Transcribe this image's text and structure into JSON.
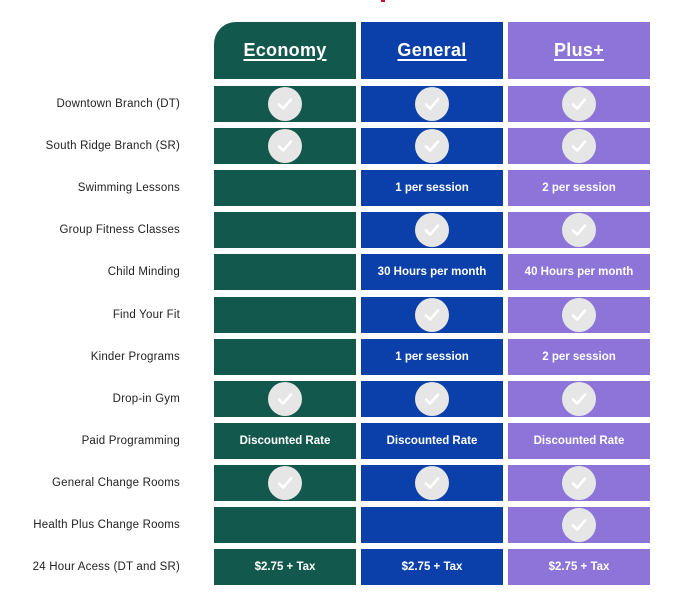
{
  "colors": {
    "economy": "#13584c",
    "general": "#0b40aa",
    "plus": "#8c74d8",
    "check_bg": "#e6e6e6",
    "check_mark": "#ffffff"
  },
  "plans": [
    {
      "key": "economy",
      "label": "Economy"
    },
    {
      "key": "general",
      "label": "General"
    },
    {
      "key": "plus",
      "label": "Plus+"
    }
  ],
  "rows": [
    {
      "label": "Downtown Branch (DT)",
      "cells": [
        {
          "check": true
        },
        {
          "check": true
        },
        {
          "check": true
        }
      ]
    },
    {
      "label": "South Ridge Branch (SR)",
      "cells": [
        {
          "check": true
        },
        {
          "check": true
        },
        {
          "check": true
        }
      ]
    },
    {
      "label": "Swimming Lessons",
      "cells": [
        {
          "text": ""
        },
        {
          "text": "1 per session"
        },
        {
          "text": "2 per session"
        }
      ]
    },
    {
      "label": "Group Fitness Classes",
      "cells": [
        {
          "text": ""
        },
        {
          "check": true
        },
        {
          "check": true
        }
      ]
    },
    {
      "label": "Child Minding",
      "cells": [
        {
          "text": ""
        },
        {
          "text": "30 Hours per month"
        },
        {
          "text": "40 Hours per month"
        }
      ]
    },
    {
      "label": "Find Your Fit",
      "cells": [
        {
          "text": ""
        },
        {
          "check": true
        },
        {
          "check": true
        }
      ]
    },
    {
      "label": "Kinder Programs",
      "cells": [
        {
          "text": ""
        },
        {
          "text": "1 per session"
        },
        {
          "text": "2 per session"
        }
      ]
    },
    {
      "label": "Drop-in Gym",
      "cells": [
        {
          "check": true
        },
        {
          "check": true
        },
        {
          "check": true
        }
      ]
    },
    {
      "label": "Paid Programming",
      "cells": [
        {
          "text": "Discounted Rate"
        },
        {
          "text": "Discounted Rate"
        },
        {
          "text": "Discounted Rate"
        }
      ]
    },
    {
      "label": "General Change Rooms",
      "cells": [
        {
          "check": true
        },
        {
          "check": true
        },
        {
          "check": true
        }
      ]
    },
    {
      "label": "Health Plus Change Rooms",
      "cells": [
        {
          "text": ""
        },
        {
          "text": ""
        },
        {
          "check": true
        }
      ]
    },
    {
      "label": "24 Hour Acess (DT and SR)",
      "cells": [
        {
          "text": "$2.75 + Tax"
        },
        {
          "text": "$2.75 + Tax"
        },
        {
          "text": "$2.75 + Tax"
        }
      ]
    }
  ]
}
